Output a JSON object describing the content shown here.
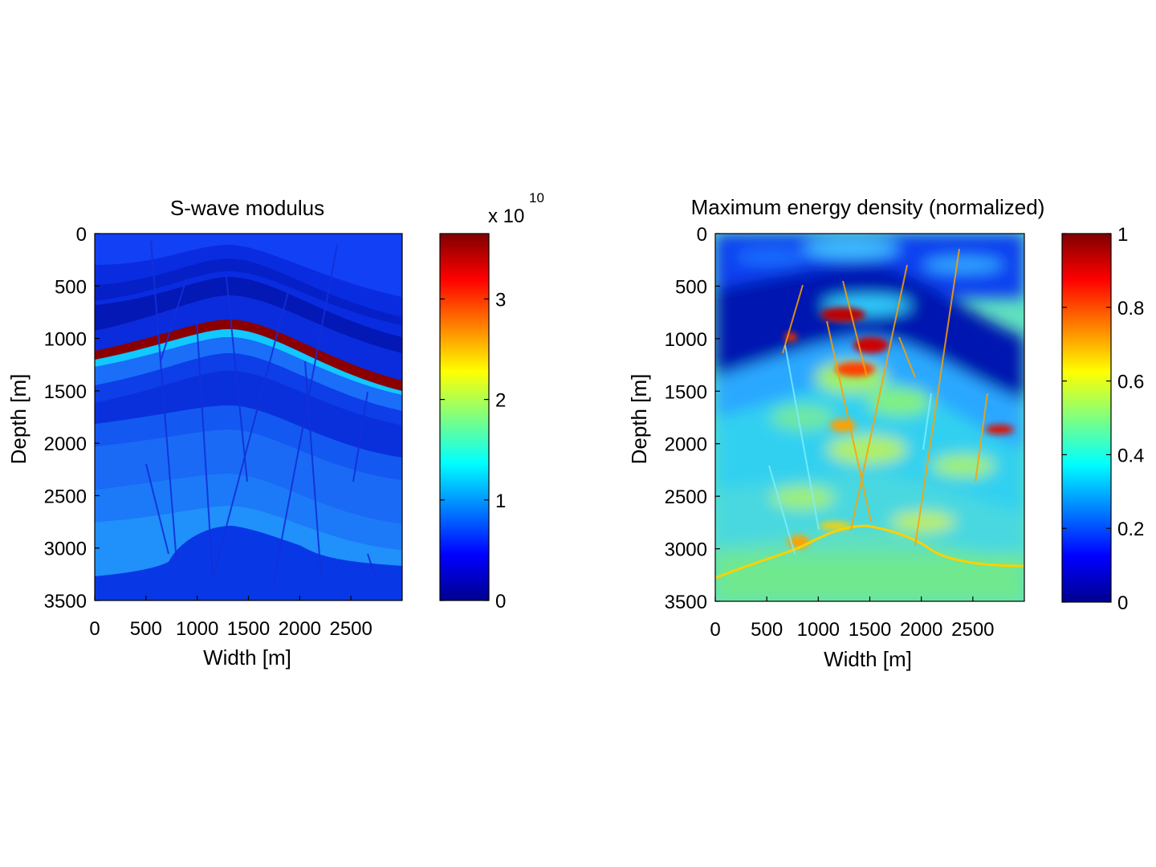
{
  "chart_data": [
    {
      "type": "heatmap",
      "title": "S-wave modulus",
      "xlabel": "Width [m]",
      "ylabel": "Depth [m]",
      "xlim": [
        0,
        3000
      ],
      "ylim": [
        0,
        3500
      ],
      "y_reversed": true,
      "xticks": [
        "0",
        "500",
        "1000",
        "1500",
        "2000",
        "2500"
      ],
      "yticks": [
        "0",
        "500",
        "1000",
        "1500",
        "2000",
        "2500",
        "3000",
        "3500"
      ],
      "colormap": "jet",
      "colorbar": {
        "range": [
          0,
          3.65
        ],
        "ticks": [
          "0",
          "1",
          "2",
          "3"
        ],
        "exponent_label": "x 10",
        "exponent": "10"
      }
    },
    {
      "type": "heatmap",
      "title": "Maximum energy density (normalized)",
      "xlabel": "Width [m]",
      "ylabel": "Depth [m]",
      "xlim": [
        0,
        3000
      ],
      "ylim": [
        0,
        3500
      ],
      "y_reversed": true,
      "xticks": [
        "0",
        "500",
        "1000",
        "1500",
        "2000",
        "2500"
      ],
      "yticks": [
        "0",
        "500",
        "1000",
        "1500",
        "2000",
        "2500",
        "3000",
        "3500"
      ],
      "colormap": "jet",
      "colorbar": {
        "range": [
          0,
          1
        ],
        "ticks": [
          "0",
          "0.2",
          "0.4",
          "0.6",
          "0.8",
          "1"
        ]
      }
    }
  ],
  "colors": {
    "jet_stops": [
      "#00008f",
      "#0000ff",
      "#00ffff",
      "#ffff00",
      "#ff0000",
      "#800000"
    ]
  }
}
